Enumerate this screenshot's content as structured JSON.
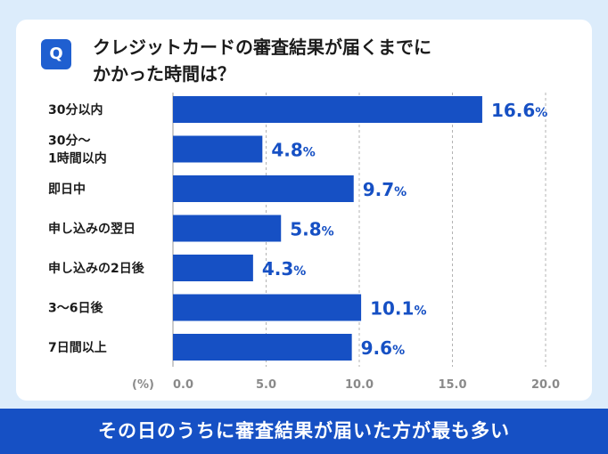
{
  "question": {
    "badge": "Q",
    "line1": "クレジットカードの審査結果が届くまでに",
    "line2": "かかった時間は？"
  },
  "chart_data": {
    "type": "bar",
    "orientation": "horizontal",
    "categories": [
      [
        "30分以内"
      ],
      [
        "30分〜",
        "1時間以内"
      ],
      [
        "即日中"
      ],
      [
        "申し込みの翌日"
      ],
      [
        "申し込みの2日後"
      ],
      [
        "3〜6日後"
      ],
      [
        "7日間以上"
      ]
    ],
    "values": [
      16.6,
      4.8,
      9.7,
      5.8,
      4.3,
      10.1,
      9.6
    ],
    "value_unit": "%",
    "xlim": [
      0,
      20
    ],
    "xticks": [
      "0.0",
      "5.0",
      "10.0",
      "15.0",
      "20.0"
    ],
    "xtick_values": [
      0,
      5,
      10,
      15,
      20
    ],
    "xlabel": "(%)",
    "grid": true,
    "bar_color": "#1650c4"
  },
  "footer": {
    "text": "その日のうちに審査結果が届いた方が最も多い"
  }
}
